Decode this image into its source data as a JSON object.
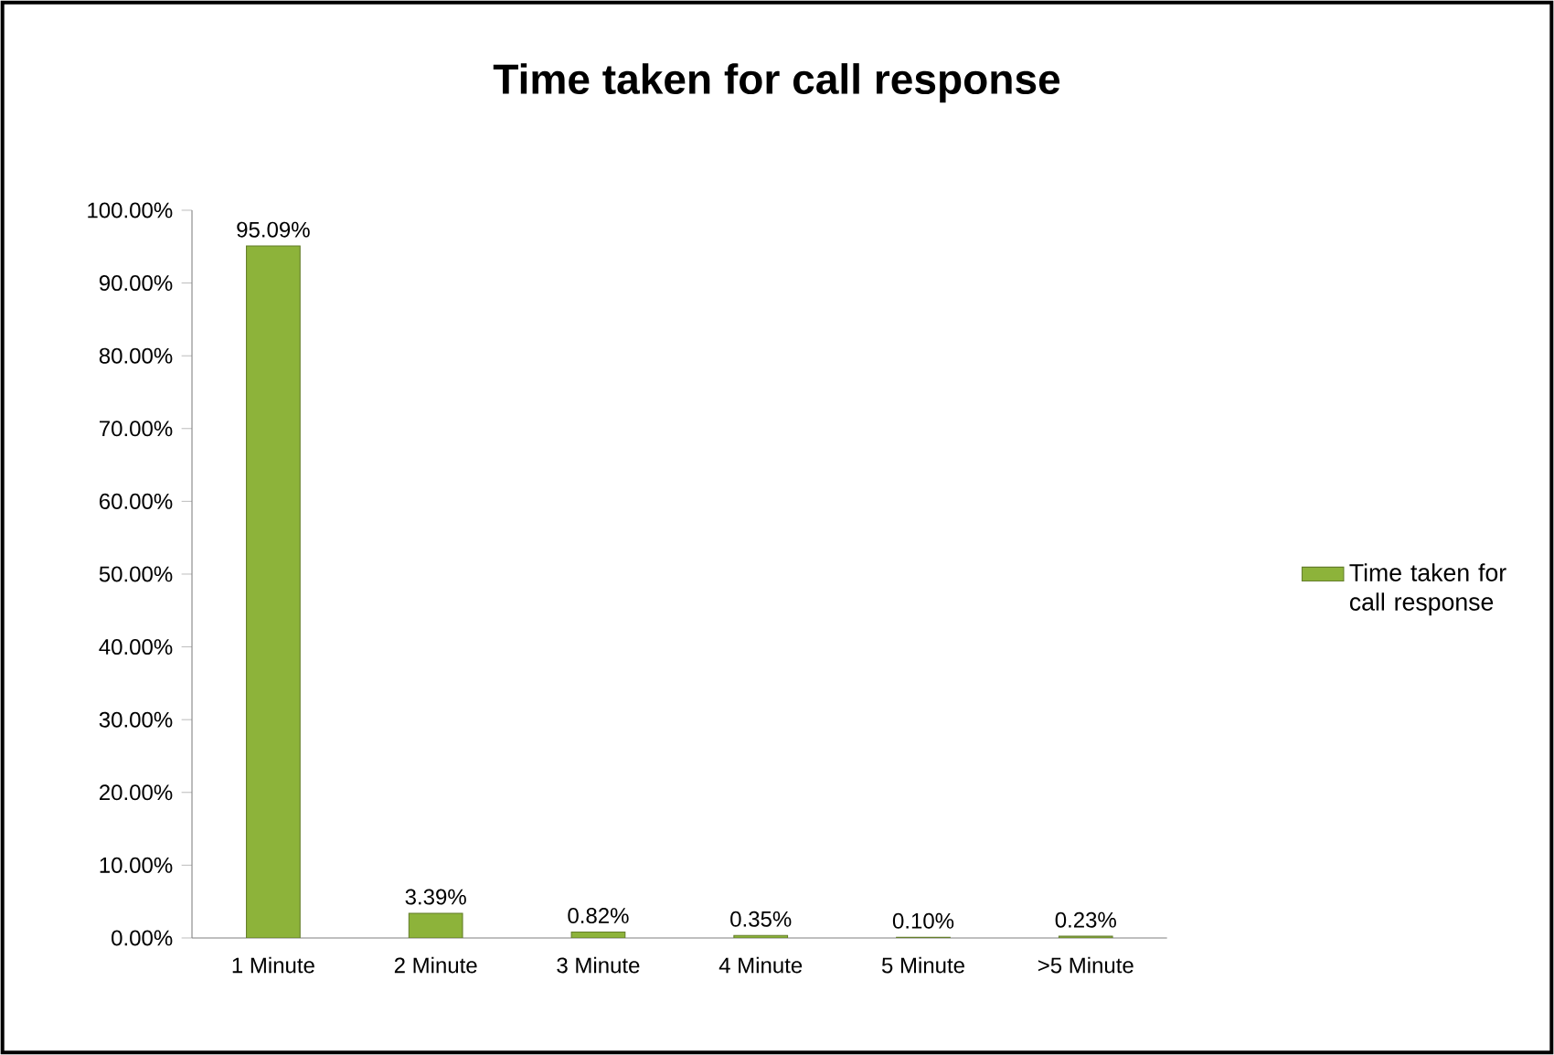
{
  "chart_data": {
    "type": "bar",
    "title": "Time taken for call response",
    "categories": [
      "1 Minute",
      "2 Minute",
      "3 Minute",
      "4 Minute",
      "5 Minute",
      ">5 Minute"
    ],
    "series": [
      {
        "name": "Time taken for call response",
        "color": "#8db33a",
        "values": [
          95.09,
          3.39,
          0.82,
          0.35,
          0.1,
          0.23
        ],
        "value_labels": [
          "95.09%",
          "3.39%",
          "0.82%",
          "0.35%",
          "0.10%",
          "0.23%"
        ]
      }
    ],
    "ylim": [
      0,
      100
    ],
    "yticks": [
      {
        "value": 0,
        "label": "0.00%"
      },
      {
        "value": 10,
        "label": "10.00%"
      },
      {
        "value": 20,
        "label": "20.00%"
      },
      {
        "value": 30,
        "label": "30.00%"
      },
      {
        "value": 40,
        "label": "40.00%"
      },
      {
        "value": 50,
        "label": "50.00%"
      },
      {
        "value": 60,
        "label": "60.00%"
      },
      {
        "value": 70,
        "label": "70.00%"
      },
      {
        "value": 80,
        "label": "80.00%"
      },
      {
        "value": 90,
        "label": "90.00%"
      },
      {
        "value": 100,
        "label": "100.00%"
      }
    ],
    "legend": "right"
  }
}
